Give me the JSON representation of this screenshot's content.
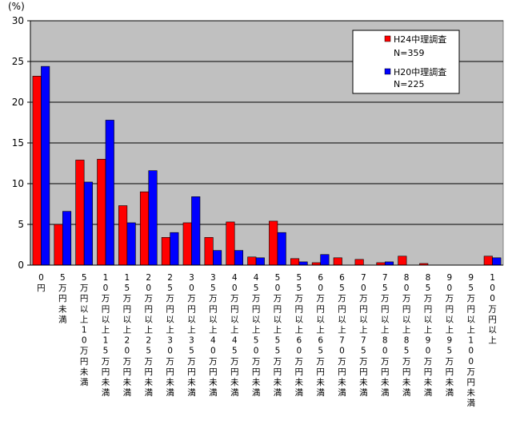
{
  "chart_data": {
    "type": "bar",
    "unit_label": "(%)",
    "ylim": [
      0,
      30
    ],
    "yticks": [
      0,
      5,
      10,
      15,
      20,
      25,
      30
    ],
    "grid": true,
    "legend_position": "top-right",
    "categories": [
      "0円",
      "5万円未満",
      "5万円以上10万円未満",
      "10万円以上15万円未満",
      "15万円以上20万円未満",
      "20万円以上25万円未満",
      "25万円以上30万円未満",
      "30万円以上35万円未満",
      "35万円以上40万円未満",
      "40万円以上45万円未満",
      "45万円以上50万円未満",
      "50万円以上55万円未満",
      "55万円以上60万円未満",
      "60万円以上65万円未満",
      "65万円以上70万円未満",
      "70万円以上75万円未満",
      "75万円以上80万円未満",
      "80万円以上85万円未満",
      "85万円以上90万円未満",
      "90万円以上95万円未満",
      "95万円以上100万円未満",
      "100万円以上"
    ],
    "series": [
      {
        "name": "H24中理調査",
        "n_label": "N=359",
        "color": "#ff0000",
        "values": [
          23.2,
          5.0,
          12.9,
          13.0,
          7.3,
          9.0,
          3.4,
          5.2,
          3.4,
          5.3,
          1.0,
          5.4,
          0.8,
          0.3,
          0.9,
          0.7,
          0.3,
          1.1,
          0.2,
          0.0,
          0.0,
          1.1
        ]
      },
      {
        "name": "H20中理調査",
        "n_label": "N=225",
        "color": "#0000ff",
        "values": [
          24.4,
          6.6,
          10.2,
          17.8,
          5.2,
          11.6,
          4.0,
          8.4,
          1.8,
          1.8,
          0.9,
          4.0,
          0.4,
          1.3,
          0.0,
          0.0,
          0.4,
          0.0,
          0.0,
          0.0,
          0.0,
          0.9
        ]
      }
    ]
  }
}
